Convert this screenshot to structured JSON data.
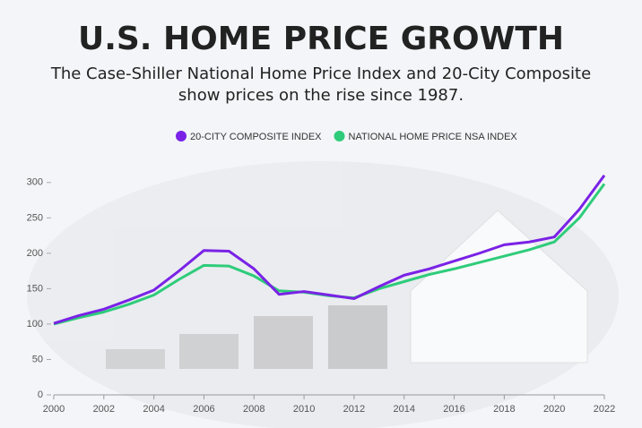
{
  "chart_data": {
    "type": "line",
    "title": "U.S. HOME PRICE GROWTH",
    "subtitle": [
      "The Case-Shiller National Home Price Index and 20-City Composite",
      "show prices on the rise since 1987."
    ],
    "x": [
      2000,
      2001,
      2002,
      2003,
      2004,
      2005,
      2006,
      2007,
      2008,
      2009,
      2010,
      2011,
      2012,
      2013,
      2014,
      2015,
      2016,
      2017,
      2018,
      2019,
      2020,
      2021,
      2022
    ],
    "series": [
      {
        "name": "20-CITY COMPOSITE INDEX",
        "color": "#7a22e6",
        "values": [
          101,
          112,
          121,
          134,
          148,
          175,
          204,
          203,
          178,
          142,
          146,
          141,
          136,
          153,
          169,
          178,
          189,
          200,
          212,
          216,
          223,
          262,
          310
        ]
      },
      {
        "name": "NATIONAL HOME PRICE NSA INDEX",
        "color": "#2ecc7a",
        "values": [
          100,
          109,
          117,
          128,
          141,
          163,
          183,
          182,
          168,
          147,
          145,
          140,
          137,
          150,
          160,
          170,
          178,
          187,
          196,
          205,
          216,
          250,
          298
        ]
      }
    ],
    "xlim": [
      2000,
      2022
    ],
    "xticks": [
      2000,
      2002,
      2004,
      2006,
      2008,
      2010,
      2012,
      2014,
      2016,
      2018,
      2020,
      2022
    ],
    "ylim": [
      0,
      320
    ],
    "yticks": [
      0,
      50,
      100,
      150,
      200,
      250,
      300
    ]
  }
}
